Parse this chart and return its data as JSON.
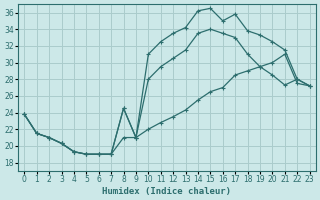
{
  "xlabel": "Humidex (Indice chaleur)",
  "bg_color": "#cce8e8",
  "grid_color": "#aacccc",
  "line_color": "#2d6e6e",
  "xlim": [
    -0.5,
    23.5
  ],
  "ylim": [
    17,
    37
  ],
  "yticks": [
    18,
    20,
    22,
    24,
    26,
    28,
    30,
    32,
    34,
    36
  ],
  "xticks": [
    0,
    1,
    2,
    3,
    4,
    5,
    6,
    7,
    8,
    9,
    10,
    11,
    12,
    13,
    14,
    15,
    16,
    17,
    18,
    19,
    20,
    21,
    22,
    23
  ],
  "x": [
    0,
    1,
    2,
    3,
    4,
    5,
    6,
    7,
    8,
    9,
    10,
    11,
    12,
    13,
    14,
    15,
    16,
    17,
    18,
    19,
    20,
    21,
    22,
    23
  ],
  "line_top": [
    23.8,
    21.5,
    21.0,
    20.3,
    19.3,
    19.0,
    19.0,
    19.0,
    24.5,
    21.0,
    31.0,
    32.5,
    33.5,
    34.2,
    36.2,
    36.5,
    35.0,
    35.8,
    33.8,
    33.3,
    32.5,
    31.5,
    28.0,
    27.2
  ],
  "line_mid": [
    23.8,
    21.5,
    21.0,
    20.3,
    19.3,
    19.0,
    19.0,
    19.0,
    24.5,
    21.0,
    28.0,
    29.5,
    30.5,
    31.5,
    33.5,
    34.0,
    33.5,
    33.0,
    31.0,
    29.5,
    28.5,
    27.3,
    28.0,
    27.2
  ],
  "line_bot": [
    23.8,
    21.5,
    21.0,
    20.3,
    19.3,
    19.0,
    19.0,
    19.0,
    21.0,
    21.0,
    22.0,
    22.8,
    23.5,
    24.3,
    25.5,
    26.5,
    27.0,
    28.5,
    29.0,
    29.5,
    30.0,
    31.0,
    27.5,
    27.2
  ]
}
